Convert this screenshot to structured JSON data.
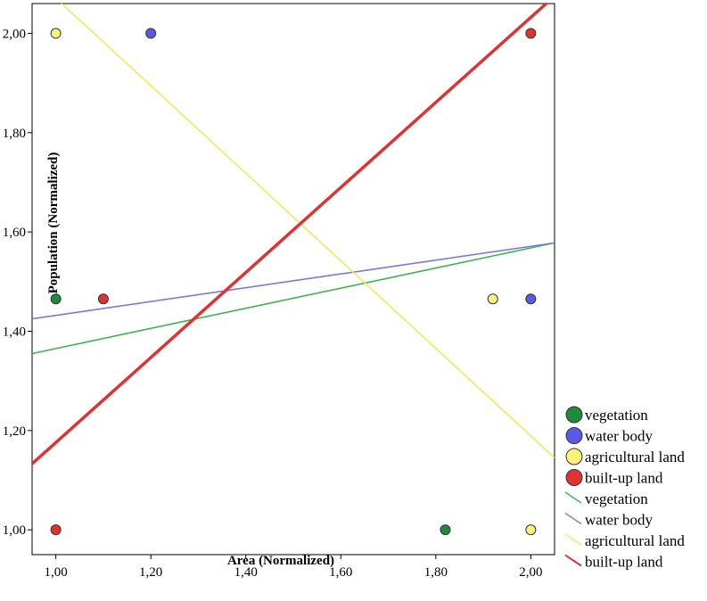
{
  "chart_data": {
    "type": "scatter",
    "title": "",
    "xlabel": "Area (Normalized)",
    "ylabel": "Population (Normalized)",
    "xlim": [
      0.95,
      2.05
    ],
    "ylim": [
      0.95,
      2.06
    ],
    "x_ticks": [
      "1,00",
      "1,20",
      "1,40",
      "1,60",
      "1,80",
      "2,00"
    ],
    "x_tick_values": [
      1.0,
      1.2,
      1.4,
      1.6,
      1.8,
      2.0
    ],
    "y_ticks": [
      "1,00",
      "1,20",
      "1,40",
      "1,60",
      "1,80",
      "2,00"
    ],
    "y_tick_values": [
      1.0,
      1.2,
      1.4,
      1.6,
      1.8,
      2.0
    ],
    "grid": false,
    "legend_position": "right",
    "series": [
      {
        "name": "vegetation",
        "color": "#1e8a3c",
        "points": [
          [
            1.0,
            1.465
          ],
          [
            1.82,
            1.0
          ]
        ]
      },
      {
        "name": "water body",
        "color": "#5a5ae6",
        "points": [
          [
            1.2,
            2.0
          ],
          [
            2.0,
            1.465
          ]
        ]
      },
      {
        "name": "agricultural land",
        "color": "#f8f27a",
        "points": [
          [
            1.0,
            2.0
          ],
          [
            1.92,
            1.465
          ],
          [
            2.0,
            1.0
          ]
        ]
      },
      {
        "name": "built-up land",
        "color": "#e03232",
        "points": [
          [
            1.1,
            1.465
          ],
          [
            1.0,
            1.0
          ],
          [
            2.0,
            2.0
          ]
        ]
      }
    ],
    "fit_lines": [
      {
        "name": "vegetation",
        "color": "#3cb44b",
        "width": 1.6,
        "from": [
          0.95,
          1.355
        ],
        "to": [
          2.05,
          1.578
        ]
      },
      {
        "name": "water body",
        "color": "#7878e6",
        "width": 1.6,
        "from": [
          0.95,
          1.425
        ],
        "to": [
          2.05,
          1.578
        ]
      },
      {
        "name": "agricultural land",
        "color": "#ecec5a",
        "width": 1.6,
        "from": [
          0.95,
          2.115
        ],
        "to": [
          2.05,
          1.145
        ]
      },
      {
        "name": "built-up land",
        "color": "#e03232",
        "width": 3.5,
        "from": [
          0.95,
          1.133
        ],
        "to": [
          2.05,
          2.075
        ]
      }
    ]
  }
}
